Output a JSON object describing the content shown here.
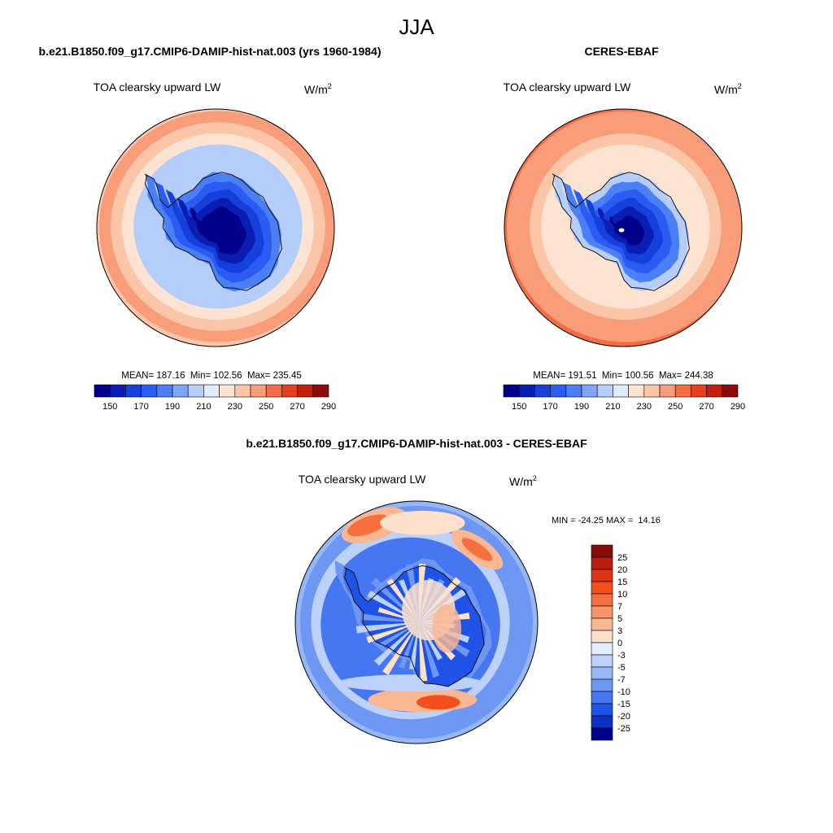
{
  "figure": {
    "season": "JJA"
  },
  "panels": [
    {
      "id": "model",
      "heading": "b.e21.B1850.f09_g17.CMIP6-DAMIP-hist-nat.003 (yrs 1960-1984)",
      "variable": "TOA clearsky upward LW",
      "units_base": "W/m",
      "units_exp": "2",
      "stats": "MEAN= 187.16  Min= 102.56  Max= 235.45",
      "mean": 187.16,
      "min": 102.56,
      "max": 235.45,
      "ring_bins": [
        0,
        1,
        2,
        3,
        4,
        6,
        8,
        9,
        10,
        9
      ]
    },
    {
      "id": "obs",
      "heading": "CERES-EBAF",
      "variable": "TOA clearsky upward LW",
      "units_base": "W/m",
      "units_exp": "2",
      "stats": "MEAN= 191.51  Min= 100.56  Max= 244.38",
      "mean": 191.51,
      "min": 100.56,
      "max": 244.38,
      "ring_bins": [
        0,
        1,
        2,
        3,
        4,
        6,
        8,
        9,
        10,
        10,
        11
      ]
    }
  ],
  "diff_panel": {
    "heading": "b.e21.B1850.f09_g17.CMIP6-DAMIP-hist-nat.003 - CERES-EBAF",
    "variable": "TOA clearsky upward LW",
    "units": "W/m",
    "units_exp": "2",
    "stats": "MIN = -24.25 MAX =  14.16",
    "min": -24.25,
    "max": 14.16
  },
  "colorbar_main": {
    "labels": [
      "150",
      "170",
      "190",
      "210",
      "230",
      "250",
      "270",
      "290"
    ],
    "colors": [
      "#00008b",
      "#0a1eb4",
      "#1640dc",
      "#2b5bf2",
      "#4a7ff5",
      "#7fa5f7",
      "#b4cdfa",
      "#e1ecfc",
      "#fde4d2",
      "#fbc6a8",
      "#f89c79",
      "#f36d44",
      "#e8401e",
      "#c21f0c",
      "#8b0a0a"
    ]
  },
  "colorbar_diff": {
    "labels": [
      "25",
      "20",
      "15",
      "10",
      "7",
      "5",
      "3",
      "0",
      "-3",
      "-5",
      "-7",
      "-10",
      "-15",
      "-20",
      "-25"
    ],
    "colors": [
      "#8b0a0a",
      "#b71c0c",
      "#de3412",
      "#f24f1f",
      "#f6703f",
      "#f89467",
      "#fbb792",
      "#fde1cc",
      "#e1ecfc",
      "#bcd2fa",
      "#96b7f7",
      "#6e97f4",
      "#4676f1",
      "#1f52e6",
      "#0c30c4",
      "#00008b"
    ]
  },
  "colors": {
    "coast": "#111111",
    "missing": "#ffffff"
  }
}
